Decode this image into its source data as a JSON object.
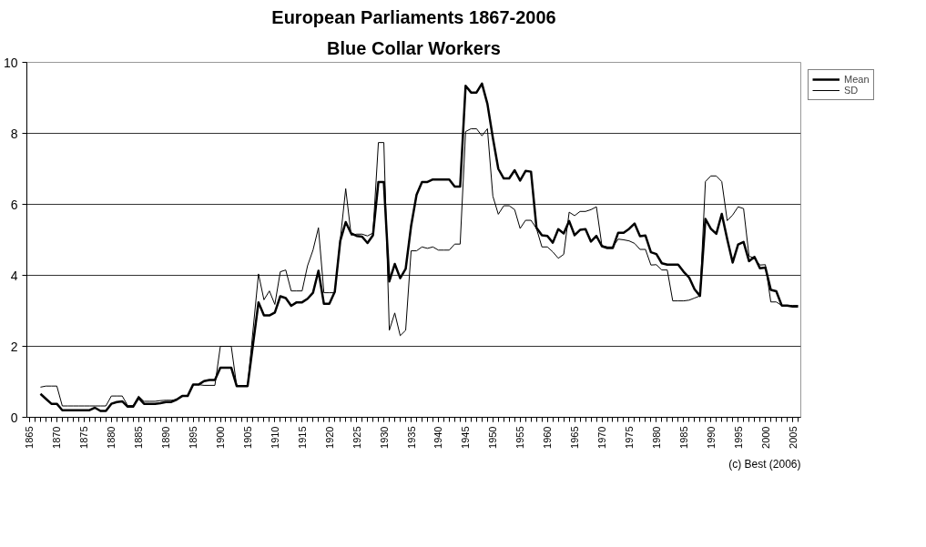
{
  "chart_data": {
    "type": "line",
    "title": "European Parliaments 1867-2006",
    "subtitle": "Blue Collar Workers",
    "xlim": [
      1864.5,
      2006.5
    ],
    "xticks": [
      1865,
      1870,
      1875,
      1880,
      1885,
      1890,
      1895,
      1900,
      1905,
      1910,
      1915,
      1920,
      1925,
      1930,
      1935,
      1940,
      1945,
      1950,
      1955,
      1960,
      1965,
      1970,
      1975,
      1980,
      1985,
      1990,
      1995,
      2000,
      2005
    ],
    "ylim": [
      0,
      10
    ],
    "yticks": [
      0,
      2,
      4,
      6,
      8,
      10
    ],
    "grid": "y",
    "legend": "top right",
    "marker": "none",
    "line_style": "solid",
    "annotations": [
      "(c) Best (2006)"
    ],
    "series": [
      {
        "name": "Mean",
        "color": "#000000",
        "x": [
          1867,
          1868,
          1869,
          1870,
          1871,
          1872,
          1873,
          1874,
          1875,
          1876,
          1877,
          1878,
          1879,
          1880,
          1881,
          1882,
          1883,
          1884,
          1885,
          1886,
          1887,
          1888,
          1889,
          1890,
          1891,
          1892,
          1893,
          1894,
          1895,
          1896,
          1897,
          1898,
          1899,
          1900,
          1901,
          1902,
          1903,
          1904,
          1905,
          1907,
          1908,
          1909,
          1910,
          1911,
          1912,
          1913,
          1914,
          1915,
          1916,
          1917,
          1918,
          1919,
          1920,
          1921,
          1922,
          1923,
          1924,
          1925,
          1926,
          1927,
          1928,
          1929,
          1930,
          1931,
          1932,
          1933,
          1934,
          1935,
          1936,
          1937,
          1938,
          1939,
          1940,
          1941,
          1942,
          1943,
          1944,
          1945,
          1946,
          1947,
          1948,
          1949,
          1950,
          1951,
          1952,
          1953,
          1954,
          1955,
          1956,
          1957,
          1958,
          1959,
          1960,
          1961,
          1962,
          1963,
          1964,
          1965,
          1966,
          1967,
          1968,
          1969,
          1970,
          1971,
          1972,
          1973,
          1974,
          1975,
          1976,
          1977,
          1978,
          1979,
          1980,
          1981,
          1982,
          1983,
          1984,
          1985,
          1986,
          1987,
          1988,
          1989,
          1990,
          1991,
          1992,
          1993,
          1994,
          1995,
          1996,
          1997,
          1998,
          1999,
          2000,
          2001,
          2002,
          2003,
          2004,
          2005,
          2006
        ],
        "values": [
          0.66,
          0.52,
          0.38,
          0.38,
          0.2,
          0.2,
          0.2,
          0.2,
          0.2,
          0.2,
          0.27,
          0.18,
          0.18,
          0.38,
          0.43,
          0.45,
          0.3,
          0.3,
          0.55,
          0.38,
          0.38,
          0.38,
          0.4,
          0.43,
          0.43,
          0.5,
          0.6,
          0.6,
          0.92,
          0.92,
          1.02,
          1.05,
          1.05,
          1.4,
          1.4,
          1.4,
          0.88,
          0.88,
          0.88,
          3.24,
          2.87,
          2.87,
          2.95,
          3.41,
          3.36,
          3.14,
          3.24,
          3.24,
          3.34,
          3.51,
          4.13,
          3.2,
          3.2,
          3.54,
          4.97,
          5.5,
          5.18,
          5.11,
          5.09,
          4.91,
          5.13,
          6.63,
          6.63,
          3.83,
          4.32,
          3.92,
          4.18,
          5.39,
          6.27,
          6.63,
          6.63,
          6.7,
          6.7,
          6.7,
          6.7,
          6.5,
          6.5,
          9.34,
          9.15,
          9.15,
          9.4,
          8.83,
          7.87,
          7.0,
          6.73,
          6.73,
          6.96,
          6.67,
          6.94,
          6.92,
          5.34,
          5.13,
          5.11,
          4.92,
          5.3,
          5.18,
          5.53,
          5.13,
          5.28,
          5.3,
          4.95,
          5.11,
          4.82,
          4.77,
          4.77,
          5.2,
          5.2,
          5.31,
          5.46,
          5.1,
          5.12,
          4.65,
          4.6,
          4.34,
          4.3,
          4.3,
          4.3,
          4.1,
          3.94,
          3.61,
          3.42,
          5.59,
          5.31,
          5.17,
          5.73,
          5.02,
          4.36,
          4.87,
          4.94,
          4.4,
          4.52,
          4.2,
          4.22,
          3.59,
          3.55,
          3.15,
          3.15,
          3.12,
          3.12
        ]
      },
      {
        "name": "SD",
        "color": "#000000",
        "x": [
          1867,
          1868,
          1869,
          1870,
          1871,
          1872,
          1873,
          1874,
          1875,
          1876,
          1877,
          1878,
          1879,
          1880,
          1881,
          1882,
          1883,
          1884,
          1885,
          1886,
          1887,
          1888,
          1889,
          1890,
          1891,
          1892,
          1893,
          1894,
          1895,
          1896,
          1897,
          1898,
          1899,
          1900,
          1901,
          1902,
          1903,
          1904,
          1905,
          1907,
          1908,
          1909,
          1910,
          1911,
          1912,
          1913,
          1914,
          1915,
          1916,
          1917,
          1918,
          1919,
          1920,
          1921,
          1922,
          1923,
          1924,
          1925,
          1926,
          1927,
          1928,
          1929,
          1930,
          1931,
          1932,
          1933,
          1934,
          1935,
          1936,
          1937,
          1938,
          1939,
          1940,
          1941,
          1942,
          1943,
          1944,
          1945,
          1946,
          1947,
          1948,
          1949,
          1950,
          1951,
          1952,
          1953,
          1954,
          1955,
          1956,
          1957,
          1958,
          1959,
          1960,
          1961,
          1962,
          1963,
          1964,
          1965,
          1966,
          1967,
          1968,
          1969,
          1970,
          1971,
          1972,
          1973,
          1974,
          1975,
          1976,
          1977,
          1978,
          1979,
          1980,
          1981,
          1982,
          1983,
          1984,
          1985,
          1986,
          1987,
          1988,
          1989,
          1990,
          1991,
          1992,
          1993,
          1994,
          1995,
          1996,
          1997,
          1998,
          1999,
          2000,
          2001,
          2002,
          2003,
          2004,
          2005,
          2006
        ],
        "values": [
          0.85,
          0.88,
          0.88,
          0.88,
          0.32,
          0.32,
          0.32,
          0.32,
          0.32,
          0.32,
          0.32,
          0.32,
          0.32,
          0.6,
          0.6,
          0.6,
          0.33,
          0.33,
          0.6,
          0.45,
          0.45,
          0.45,
          0.47,
          0.48,
          0.48,
          0.5,
          0.6,
          0.6,
          0.92,
          0.92,
          0.9,
          0.9,
          0.9,
          2.0,
          2.0,
          2.0,
          0.88,
          0.88,
          0.88,
          4.04,
          3.31,
          3.56,
          3.18,
          4.1,
          4.15,
          3.56,
          3.56,
          3.56,
          4.27,
          4.71,
          5.34,
          3.51,
          3.51,
          3.51,
          5.0,
          6.44,
          5.13,
          5.16,
          5.16,
          5.11,
          5.19,
          7.74,
          7.74,
          2.45,
          2.94,
          2.3,
          2.45,
          4.69,
          4.69,
          4.8,
          4.76,
          4.8,
          4.71,
          4.71,
          4.71,
          4.88,
          4.88,
          8.05,
          8.13,
          8.13,
          7.93,
          8.13,
          6.23,
          5.72,
          5.96,
          5.96,
          5.85,
          5.32,
          5.55,
          5.55,
          5.32,
          4.8,
          4.8,
          4.66,
          4.48,
          4.59,
          5.78,
          5.68,
          5.8,
          5.8,
          5.85,
          5.93,
          4.84,
          4.8,
          4.8,
          5.02,
          5.0,
          4.97,
          4.9,
          4.73,
          4.73,
          4.29,
          4.3,
          4.15,
          4.15,
          3.28,
          3.28,
          3.28,
          3.3,
          3.36,
          3.42,
          6.64,
          6.8,
          6.8,
          6.64,
          5.54,
          5.7,
          5.93,
          5.88,
          4.54,
          4.48,
          4.29,
          4.3,
          3.25,
          3.25,
          3.15,
          3.15,
          3.15,
          3.15
        ]
      }
    ]
  }
}
